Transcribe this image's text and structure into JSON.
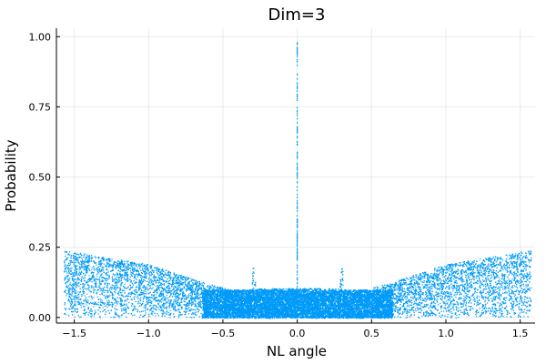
{
  "chart_data": {
    "type": "scatter",
    "title": "Dim=3",
    "xlabel": "NL angle",
    "ylabel": "Probability",
    "xlim": [
      -1.62,
      1.6
    ],
    "ylim": [
      -0.02,
      1.03
    ],
    "x_ticks": [
      -1.5,
      -1.0,
      -0.5,
      0.0,
      0.5,
      1.0,
      1.5
    ],
    "x_tick_labels": [
      "−1.5",
      "−1.0",
      "−0.5",
      "0.0",
      "0.5",
      "1.0",
      "1.5"
    ],
    "y_ticks": [
      0.0,
      0.25,
      0.5,
      0.75,
      1.0
    ],
    "y_tick_labels": [
      "0.00",
      "0.25",
      "0.50",
      "0.75",
      "1.00"
    ],
    "grid": true,
    "legend": "none",
    "series_color": "#009AF9",
    "description": {
      "x_range": [
        -1.5708,
        1.5708
      ],
      "envelope": [
        {
          "x": -1.57,
          "y": 0.24
        },
        {
          "x": -1.0,
          "y": 0.19
        },
        {
          "x": -0.6,
          "y": 0.12
        },
        {
          "x": -0.45,
          "y": 0.1
        },
        {
          "x": -0.31,
          "y": 0.1
        },
        {
          "x": -0.3,
          "y": 0.2
        },
        {
          "x": -0.28,
          "y": 0.105
        },
        {
          "x": 0.0,
          "y": 0.105
        },
        {
          "x": 0.28,
          "y": 0.105
        },
        {
          "x": 0.3,
          "y": 0.2
        },
        {
          "x": 0.31,
          "y": 0.1
        },
        {
          "x": 0.45,
          "y": 0.1
        },
        {
          "x": 0.6,
          "y": 0.12
        },
        {
          "x": 1.0,
          "y": 0.19
        },
        {
          "x": 1.57,
          "y": 0.24
        }
      ],
      "dense_band": [
        -0.64,
        0.64
      ],
      "central_spike": {
        "x": 0.0,
        "y_max": 1.0
      }
    }
  }
}
